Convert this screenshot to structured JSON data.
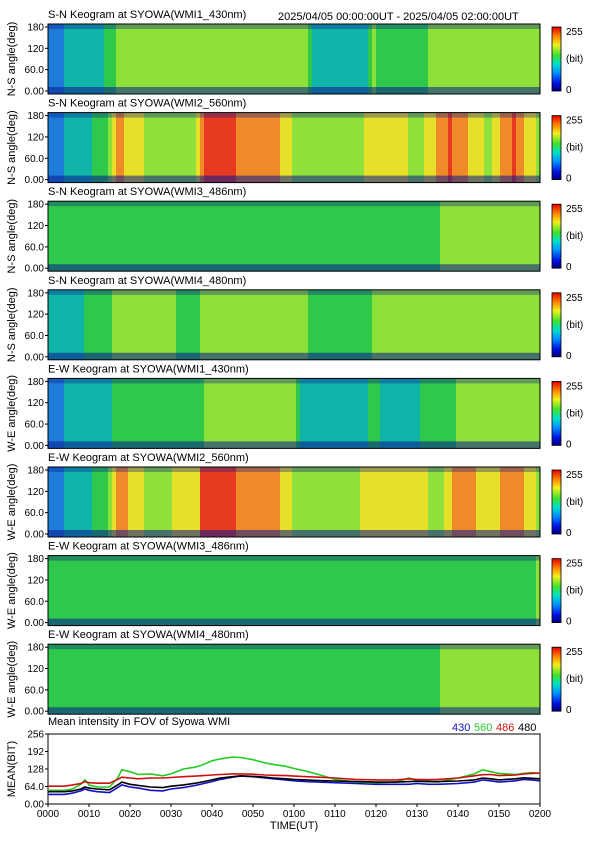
{
  "header": {
    "time_range": "2025/04/05 00:00:00UT - 2025/04/05 02:00:00UT"
  },
  "colorbar": {
    "max": "255",
    "unit": "(bit)",
    "min": "0"
  },
  "keograms": [
    {
      "title": "S-N Keogram at SYOWA(WMI1_430nm)",
      "ylabel": "N-S angle(deg)",
      "yticks": [
        "180",
        "120",
        "60.0",
        "0.00"
      ]
    },
    {
      "title": "S-N Keogram at SYOWA(WMI2_560nm)",
      "ylabel": "N-S angle(deg)",
      "yticks": [
        "180",
        "120",
        "60.0",
        "0.00"
      ]
    },
    {
      "title": "S-N Keogram at SYOWA(WMI3_486nm)",
      "ylabel": "N-S angle(deg)",
      "yticks": [
        "180",
        "120",
        "60.0",
        "0.00"
      ]
    },
    {
      "title": "S-N Keogram at SYOWA(WMI4_480nm)",
      "ylabel": "N-S angle(deg)",
      "yticks": [
        "180",
        "120",
        "60.0",
        "0.00"
      ]
    },
    {
      "title": "E-W Keogram at SYOWA(WMI1_430nm)",
      "ylabel": "W-E angle(deg)",
      "yticks": [
        "180",
        "120",
        "60.0",
        "0.00"
      ]
    },
    {
      "title": "E-W Keogram at SYOWA(WMI2_560nm)",
      "ylabel": "W-E angle(deg)",
      "yticks": [
        "180",
        "120",
        "60.0",
        "0.00"
      ]
    },
    {
      "title": "E-W Keogram at SYOWA(WMI3_486nm)",
      "ylabel": "W-E angle(deg)",
      "yticks": [
        "180",
        "120",
        "60.0",
        "0.00"
      ]
    },
    {
      "title": "E-W Keogram at SYOWA(WMI4_480nm)",
      "ylabel": "W-E angle(deg)",
      "yticks": [
        "180",
        "120",
        "60.0",
        "0.00"
      ]
    }
  ],
  "chart_data": {
    "type": "line",
    "title": "Mean intensity in FOV of Syowa WMI",
    "xlabel": "TIME(UT)",
    "ylabel": "MEAN(BIT)",
    "ylim": [
      0,
      256
    ],
    "xlim": [
      0,
      120
    ],
    "x_unit": "minutes after 00:00 UT",
    "yticks": [
      "256",
      "192",
      "128",
      "64.0",
      "0.00"
    ],
    "xticks": [
      "0000",
      "0010",
      "0020",
      "0030",
      "0040",
      "0050",
      "0100",
      "0110",
      "0120",
      "0130",
      "0140",
      "0150",
      "0200"
    ],
    "legend": [
      {
        "label": "430",
        "color": "#1010c0"
      },
      {
        "label": "560",
        "color": "#22cc22"
      },
      {
        "label": "486",
        "color": "#d01010"
      },
      {
        "label": "480",
        "color": "#000000"
      }
    ],
    "x": [
      0,
      4,
      6,
      8,
      9,
      10,
      12,
      15,
      17,
      18,
      20,
      22,
      25,
      28,
      30,
      33,
      36,
      38,
      40,
      42,
      45,
      47,
      50,
      53,
      55,
      58,
      60,
      63,
      66,
      70,
      75,
      80,
      85,
      88,
      90,
      93,
      95,
      100,
      104,
      106,
      108,
      110,
      114,
      116,
      118,
      120
    ],
    "series": [
      {
        "name": "430",
        "color": "#1010c0",
        "values": [
          35,
          35,
          40,
          48,
          55,
          50,
          45,
          42,
          60,
          70,
          62,
          58,
          50,
          48,
          55,
          60,
          68,
          75,
          82,
          90,
          98,
          102,
          100,
          95,
          92,
          88,
          85,
          82,
          80,
          78,
          75,
          72,
          72,
          72,
          75,
          72,
          72,
          75,
          80,
          88,
          85,
          80,
          85,
          90,
          88,
          85
        ]
      },
      {
        "name": "560",
        "color": "#22cc22",
        "values": [
          50,
          50,
          55,
          72,
          88,
          70,
          62,
          62,
          95,
          125,
          118,
          108,
          110,
          103,
          110,
          128,
          135,
          145,
          158,
          165,
          172,
          170,
          162,
          150,
          145,
          138,
          130,
          120,
          108,
          90,
          80,
          78,
          80,
          95,
          85,
          82,
          80,
          95,
          110,
          125,
          118,
          112,
          108,
          112,
          115,
          112
        ]
      },
      {
        "name": "486",
        "color": "#d01010",
        "values": [
          65,
          65,
          70,
          75,
          82,
          78,
          76,
          76,
          90,
          98,
          95,
          92,
          95,
          95,
          97,
          100,
          102,
          104,
          106,
          108,
          110,
          110,
          109,
          106,
          105,
          104,
          102,
          100,
          98,
          95,
          90,
          88,
          88,
          92,
          90,
          89,
          90,
          95,
          103,
          107,
          108,
          104,
          106,
          110,
          112,
          113
        ]
      },
      {
        "name": "480",
        "color": "#000000",
        "values": [
          45,
          45,
          48,
          55,
          62,
          58,
          55,
          52,
          70,
          80,
          72,
          68,
          62,
          60,
          65,
          70,
          76,
          82,
          88,
          95,
          100,
          103,
          101,
          98,
          95,
          92,
          90,
          88,
          86,
          84,
          82,
          80,
          80,
          82,
          83,
          82,
          82,
          84,
          88,
          95,
          92,
          88,
          92,
          96,
          94,
          92
        ]
      }
    ]
  }
}
